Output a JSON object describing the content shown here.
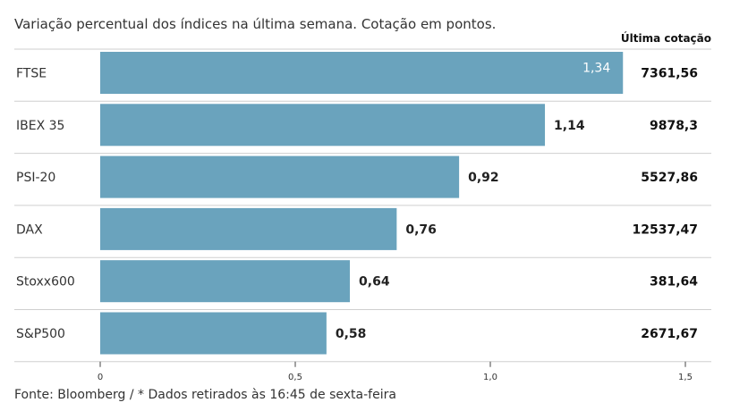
{
  "subtitle": "Variação percentual dos índices na última semana. Cotação em pontos.",
  "source": "Fonte: Bloomberg / * Dados retirados às 16:45 de sexta-feira",
  "column_header": "Última cotação",
  "colors": {
    "bar": "#6aa3bd",
    "separator": "#cfcfcf",
    "axis": "#444444"
  },
  "chart_data": {
    "type": "bar",
    "orientation": "horizontal",
    "categories": [
      "FTSE",
      "IBEX 35",
      "PSI-20",
      "DAX",
      "Stoxx600",
      "S&P500"
    ],
    "values": [
      1.34,
      1.14,
      0.92,
      0.76,
      0.64,
      0.58
    ],
    "value_labels": [
      "1,34",
      "1,14",
      "0,92",
      "0,76",
      "0,64",
      "0,58"
    ],
    "last_quote": [
      "7361,56",
      "9878,3",
      "5527,86",
      "12537,47",
      "381,64",
      "2671,67"
    ],
    "xlim": [
      0,
      1.5
    ],
    "xticks": [
      0,
      0.5,
      1.0,
      1.5
    ],
    "xtick_labels": [
      "0",
      "0,5",
      "1,0",
      "1,5"
    ],
    "grid": false
  }
}
